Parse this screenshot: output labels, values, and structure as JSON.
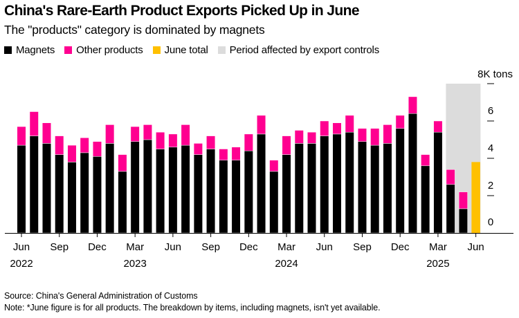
{
  "title": "China's Rare-Earth Product Exports Picked Up in June",
  "subtitle": "The \"products\" category is dominated by magnets",
  "legend": [
    {
      "label": "Magnets",
      "color": "#000000"
    },
    {
      "label": "Other products",
      "color": "#ff0090"
    },
    {
      "label": "June total",
      "color": "#ffc000"
    },
    {
      "label": "Period affected by export controls",
      "color": "#dcdcdc"
    }
  ],
  "source": "Source: China's General Administration of Customs",
  "note": "Note: *June figure is for all products. The breakdown by items, including magnets, isn't yet available.",
  "chart_data": {
    "type": "bar",
    "stacked": true,
    "title": "China's Rare-Earth Product Exports Picked Up in June",
    "subtitle": "The \"products\" category is dominated by magnets",
    "xlabel": "",
    "ylabel": "8K tons",
    "y_unit_label": "8K tons",
    "ylim": [
      0,
      8
    ],
    "yticks": [
      0,
      2,
      4,
      6,
      8
    ],
    "ytick_labels": [
      "0",
      "2",
      "4",
      "6",
      "8K tons"
    ],
    "grid": false,
    "legend_position": "top-left",
    "categories": [
      "Jun 2022",
      "Jul 2022",
      "Aug 2022",
      "Sep 2022",
      "Oct 2022",
      "Nov 2022",
      "Dec 2022",
      "Jan 2023",
      "Feb 2023",
      "Mar 2023",
      "Apr 2023",
      "May 2023",
      "Jun 2023",
      "Jul 2023",
      "Aug 2023",
      "Sep 2023",
      "Oct 2023",
      "Nov 2023",
      "Dec 2023",
      "Jan 2024",
      "Feb 2024",
      "Mar 2024",
      "Apr 2024",
      "May 2024",
      "Jun 2024",
      "Jul 2024",
      "Aug 2024",
      "Sep 2024",
      "Oct 2024",
      "Nov 2024",
      "Dec 2024",
      "Jan 2025",
      "Feb 2025",
      "Mar 2025",
      "Apr 2025",
      "May 2025",
      "Jun 2025"
    ],
    "xtick_labels": [
      {
        "month": "Jun",
        "year": "2022",
        "index": 0
      },
      {
        "month": "Sep",
        "year": "",
        "index": 3
      },
      {
        "month": "Dec",
        "year": "",
        "index": 6
      },
      {
        "month": "Mar",
        "year": "2023",
        "index": 9
      },
      {
        "month": "Jun",
        "year": "",
        "index": 12
      },
      {
        "month": "Sep",
        "year": "",
        "index": 15
      },
      {
        "month": "Dec",
        "year": "",
        "index": 18
      },
      {
        "month": "Mar",
        "year": "2024",
        "index": 21
      },
      {
        "month": "Jun",
        "year": "",
        "index": 24
      },
      {
        "month": "Sep",
        "year": "",
        "index": 27
      },
      {
        "month": "Dec",
        "year": "",
        "index": 30
      },
      {
        "month": "Mar",
        "year": "2025",
        "index": 33
      },
      {
        "month": "Jun",
        "year": "",
        "index": 36
      }
    ],
    "series": [
      {
        "name": "Magnets",
        "color": "#000000",
        "values": [
          4.7,
          5.2,
          4.8,
          4.2,
          3.8,
          4.3,
          4.1,
          4.8,
          3.3,
          4.9,
          5.0,
          4.5,
          4.6,
          4.7,
          4.2,
          4.5,
          3.9,
          3.9,
          4.4,
          5.3,
          3.3,
          4.2,
          4.8,
          4.8,
          5.2,
          5.3,
          5.4,
          4.9,
          4.7,
          4.8,
          5.6,
          6.4,
          3.6,
          5.4,
          2.6,
          1.3,
          null
        ]
      },
      {
        "name": "Other products",
        "color": "#ff0090",
        "values": [
          1.0,
          1.3,
          1.1,
          1.0,
          0.9,
          0.8,
          0.8,
          1.0,
          0.9,
          0.8,
          0.8,
          0.9,
          0.7,
          1.1,
          0.6,
          0.7,
          0.6,
          0.7,
          0.9,
          1.0,
          0.6,
          1.0,
          0.7,
          0.6,
          0.8,
          0.6,
          0.9,
          0.7,
          0.9,
          1.0,
          0.7,
          0.9,
          0.6,
          0.6,
          0.8,
          0.9,
          null
        ]
      },
      {
        "name": "June total",
        "color": "#ffc000",
        "values": [
          null,
          null,
          null,
          null,
          null,
          null,
          null,
          null,
          null,
          null,
          null,
          null,
          null,
          null,
          null,
          null,
          null,
          null,
          null,
          null,
          null,
          null,
          null,
          null,
          null,
          null,
          null,
          null,
          null,
          null,
          null,
          null,
          null,
          null,
          null,
          null,
          3.8
        ]
      }
    ],
    "shaded_period": {
      "label": "Period affected by export controls",
      "start": "Apr 2025",
      "end": "Jun 2025",
      "color": "#dcdcdc"
    }
  }
}
